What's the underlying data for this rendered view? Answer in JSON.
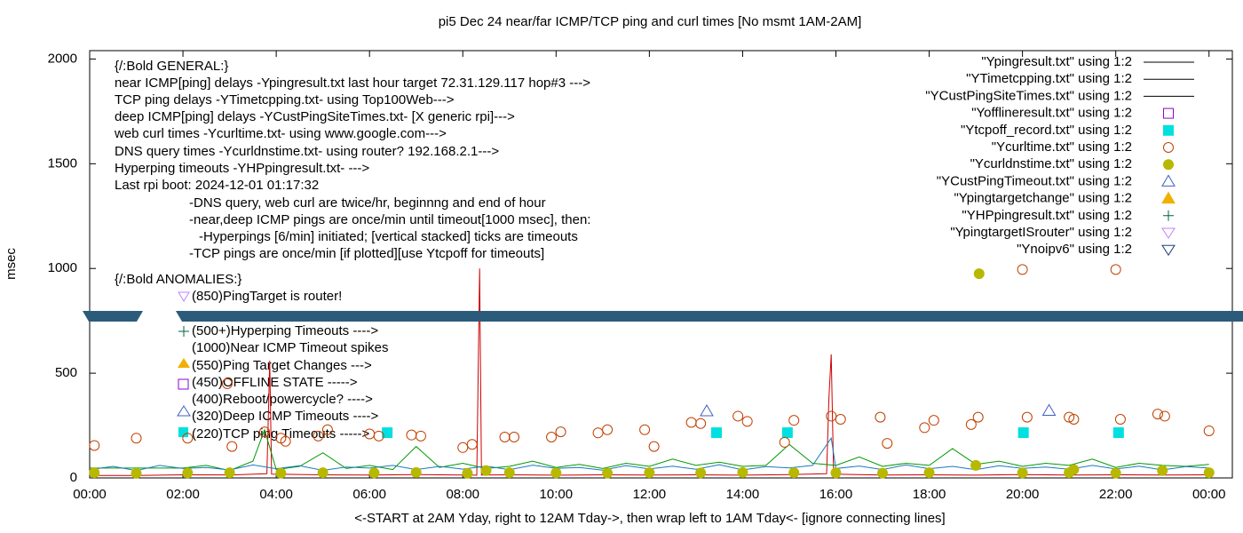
{
  "chart_data": {
    "type": "line",
    "title": "pi5 Dec 24  near/far ICMP/TCP ping and curl times [No msmt 1AM-2AM]",
    "y_label": "msec",
    "x_label": "<-START at 2AM Yday, right to 12AM Tday->, then wrap left to 1AM Tday<- [ignore connecting lines]",
    "xlim": [
      0,
      24.5
    ],
    "xticks": [
      {
        "value": 0,
        "label": "00:00"
      },
      {
        "value": 2,
        "label": "02:00"
      },
      {
        "value": 4,
        "label": "04:00"
      },
      {
        "value": 6,
        "label": "06:00"
      },
      {
        "value": 8,
        "label": "08:00"
      },
      {
        "value": 10,
        "label": "10:00"
      },
      {
        "value": 12,
        "label": "12:00"
      },
      {
        "value": 14,
        "label": "14:00"
      },
      {
        "value": 16,
        "label": "16:00"
      },
      {
        "value": 18,
        "label": "18:00"
      },
      {
        "value": 20,
        "label": "20:00"
      },
      {
        "value": 22,
        "label": "22:00"
      },
      {
        "value": 24,
        "label": "00:00"
      }
    ],
    "ylim": [
      0,
      2040
    ],
    "yticks": [
      0,
      500,
      1000,
      1500,
      2000
    ],
    "grid": false,
    "legend": "top-right",
    "annotations": [
      "{/:Bold GENERAL:}",
      "near ICMP[ping] delays -Ypingresult.txt last hour target 72.31.129.117 hop#3 --->",
      "TCP ping delays -YTimetcpping.txt- using Top100Web--->",
      "deep ICMP[ping] delays -YCustPingSiteTimes.txt- [X generic rpi]--->",
      "web curl times -Ycurltime.txt- using www.google.com--->",
      "DNS query times -Ycurldnstime.txt- using router? 192.168.2.1--->",
      "Hyperping timeouts -YHPpingresult.txt- --->",
      "Last rpi boot: 2024-12-01 01:17:32",
      "-DNS query, web curl are twice/hr, beginnng and end of hour",
      "-near,deep ICMP pings are once/min until timeout[1000 msec], then:",
      "-Hyperpings [6/min] initiated; [vertical stacked] ticks are timeouts",
      "-TCP pings are once/min [if plotted][use Ytcpoff for timeouts]",
      "{/:Bold ANOMALIES:}",
      "(850)PingTarget is router!",
      "(500+)Hyperping Timeouts ---->",
      "(1000)Near ICMP Timeout spikes",
      "(550)Ping Target Changes --->",
      "(450)OFFLINE STATE ----->",
      "(400)Reboot/powercycle? ---->",
      "(320)Deep ICMP Timeouts ---->",
      "(220)TCP ping Timeouts ----->"
    ],
    "series": [
      {
        "name": "\"Ypingresult.txt\" using 1:2",
        "color": "#cc0000",
        "marker": "line",
        "x": [
          0,
          1,
          2,
          3,
          3.8,
          3.86,
          3.9,
          5,
          6,
          7,
          8,
          8.3,
          8.36,
          8.4,
          9,
          10,
          11,
          12,
          13,
          14,
          15,
          15.8,
          15.85,
          15.9,
          15.95,
          17,
          18,
          19,
          20,
          21,
          22,
          23,
          24
        ],
        "values": [
          12,
          12,
          15,
          14,
          20,
          560,
          18,
          15,
          14,
          16,
          14,
          13,
          1000,
          14,
          15,
          13,
          15,
          14,
          15,
          13,
          16,
          20,
          380,
          590,
          18,
          14,
          15,
          13,
          16,
          14,
          15,
          14,
          15
        ]
      },
      {
        "name": "\"YTimetcpping.txt\" using 1:2",
        "color": "#009900",
        "marker": "line",
        "x": [
          0,
          0.5,
          1,
          1.5,
          2,
          2.5,
          3,
          3.5,
          3.75,
          4,
          4.5,
          5,
          5.5,
          6,
          6.5,
          7,
          7.5,
          8,
          8.5,
          9,
          9.5,
          10,
          10.5,
          11,
          11.5,
          12,
          12.5,
          13,
          13.5,
          14,
          14.5,
          15,
          15.5,
          16,
          16.5,
          17,
          17.5,
          18,
          18.5,
          19,
          19.5,
          20,
          20.5,
          21,
          21.5,
          22,
          22.5,
          23,
          23.5,
          24
        ],
        "values": [
          47,
          47,
          47,
          47,
          47,
          60,
          35,
          80,
          230,
          40,
          55,
          120,
          45,
          60,
          40,
          150,
          50,
          70,
          45,
          55,
          80,
          50,
          65,
          45,
          70,
          55,
          90,
          60,
          75,
          55,
          60,
          160,
          70,
          60,
          100,
          55,
          70,
          60,
          140,
          65,
          80,
          55,
          70,
          60,
          90,
          50,
          70,
          60,
          55,
          65
        ]
      },
      {
        "name": "\"YCustPingSiteTimes.txt\" using 1:2",
        "color": "#1a7abf",
        "marker": "line",
        "x": [
          0,
          0.5,
          1,
          1.5,
          2,
          2.5,
          3,
          3.5,
          4,
          4.5,
          5,
          5.5,
          6,
          6.5,
          7,
          7.5,
          8,
          8.5,
          9,
          9.5,
          10,
          10.5,
          11,
          11.5,
          12,
          12.5,
          13,
          13.5,
          14,
          14.5,
          15,
          15.5,
          15.9,
          16,
          16.5,
          17,
          17.5,
          18,
          18.5,
          19,
          19.5,
          20,
          20.5,
          21,
          21.5,
          22,
          22.5,
          23,
          23.5,
          24
        ],
        "values": [
          40,
          55,
          35,
          60,
          45,
          50,
          38,
          62,
          44,
          58,
          36,
          52,
          47,
          60,
          40,
          55,
          42,
          57,
          39,
          61,
          46,
          50,
          37,
          59,
          43,
          56,
          41,
          63,
          38,
          54,
          48,
          60,
          190,
          45,
          57,
          40,
          62,
          44,
          55,
          39,
          58,
          46,
          52,
          41,
          60,
          43,
          56,
          38,
          54,
          47
        ]
      },
      {
        "name": "\"Yofflineresult.txt\" using 1:2",
        "color": "#9400d3",
        "marker": "square-open",
        "x": [],
        "values": []
      },
      {
        "name": "\"Ytcpoff_record.txt\" using 1:2",
        "color": "#00e0e0",
        "marker": "square",
        "x": [
          6.38,
          13.44,
          14.96,
          20.02,
          22.06
        ],
        "values": [
          216,
          216,
          216,
          216,
          216
        ]
      },
      {
        "name": "\"Ycurltime.txt\" using 1:2",
        "color": "#c04000",
        "marker": "circle-open",
        "x": [
          0.1,
          1,
          2.1,
          2.95,
          3.05,
          3.75,
          4.1,
          4.2,
          4.9,
          5.1,
          6.0,
          6.2,
          6.9,
          7.1,
          8.0,
          8.2,
          8.9,
          9.1,
          9.9,
          10.1,
          10.9,
          11.1,
          11.9,
          12.1,
          12.9,
          13.1,
          13.9,
          14.1,
          14.9,
          15.1,
          15.9,
          16.1,
          16.95,
          17.1,
          17.9,
          18.1,
          18.9,
          19.05,
          20.0,
          20.1,
          21.0,
          21.1,
          22.0,
          22.1,
          22.9,
          23.05,
          24.0
        ],
        "values": [
          155,
          190,
          190,
          450,
          150,
          220,
          190,
          175,
          200,
          230,
          210,
          200,
          205,
          200,
          145,
          160,
          195,
          195,
          195,
          220,
          215,
          230,
          230,
          150,
          265,
          260,
          295,
          270,
          170,
          275,
          295,
          280,
          290,
          165,
          240,
          275,
          255,
          290,
          995,
          290,
          290,
          280,
          995,
          280,
          305,
          295,
          225
        ]
      },
      {
        "name": "\"Ycurldnstime.txt\" using 1:2",
        "color": "#b8b800",
        "marker": "circle",
        "x": [
          0.1,
          1,
          2.1,
          3,
          4.1,
          5,
          6.1,
          7,
          8.1,
          8.5,
          9,
          10,
          11.1,
          12,
          13.1,
          14,
          15.1,
          16,
          17,
          18,
          19,
          19.07,
          20,
          21,
          21.1,
          22,
          23,
          24
        ],
        "values": [
          25,
          22,
          24,
          25,
          23,
          25,
          24,
          26,
          22,
          35,
          25,
          24,
          23,
          25,
          24,
          26,
          25,
          24,
          23,
          25,
          60,
          975,
          24,
          25,
          40,
          23,
          35,
          25
        ]
      },
      {
        "name": "\"YCustPingTimeout.txt\" using 1:2",
        "color": "#4060c0",
        "marker": "triangle-open",
        "x": [
          13.23,
          20.57
        ],
        "values": [
          318,
          320
        ]
      },
      {
        "name": "\"Ypingtargetchange\" using 1:2",
        "color": "#f0b000",
        "marker": "triangle",
        "x": [],
        "values": []
      },
      {
        "name": "\"YHPpingresult.txt\" using 1:2",
        "color": "#006040",
        "marker": "plus",
        "x": [],
        "values": []
      },
      {
        "name": "\"YpingtargetISrouter\" using 1:2",
        "color": "#c080ff",
        "marker": "triangle-down-open",
        "x": [],
        "values": []
      },
      {
        "name": "\"Ynoipv6\" using 1:2",
        "color": "#204080",
        "marker": "triangle-down-open",
        "x": [],
        "values": []
      }
    ]
  }
}
